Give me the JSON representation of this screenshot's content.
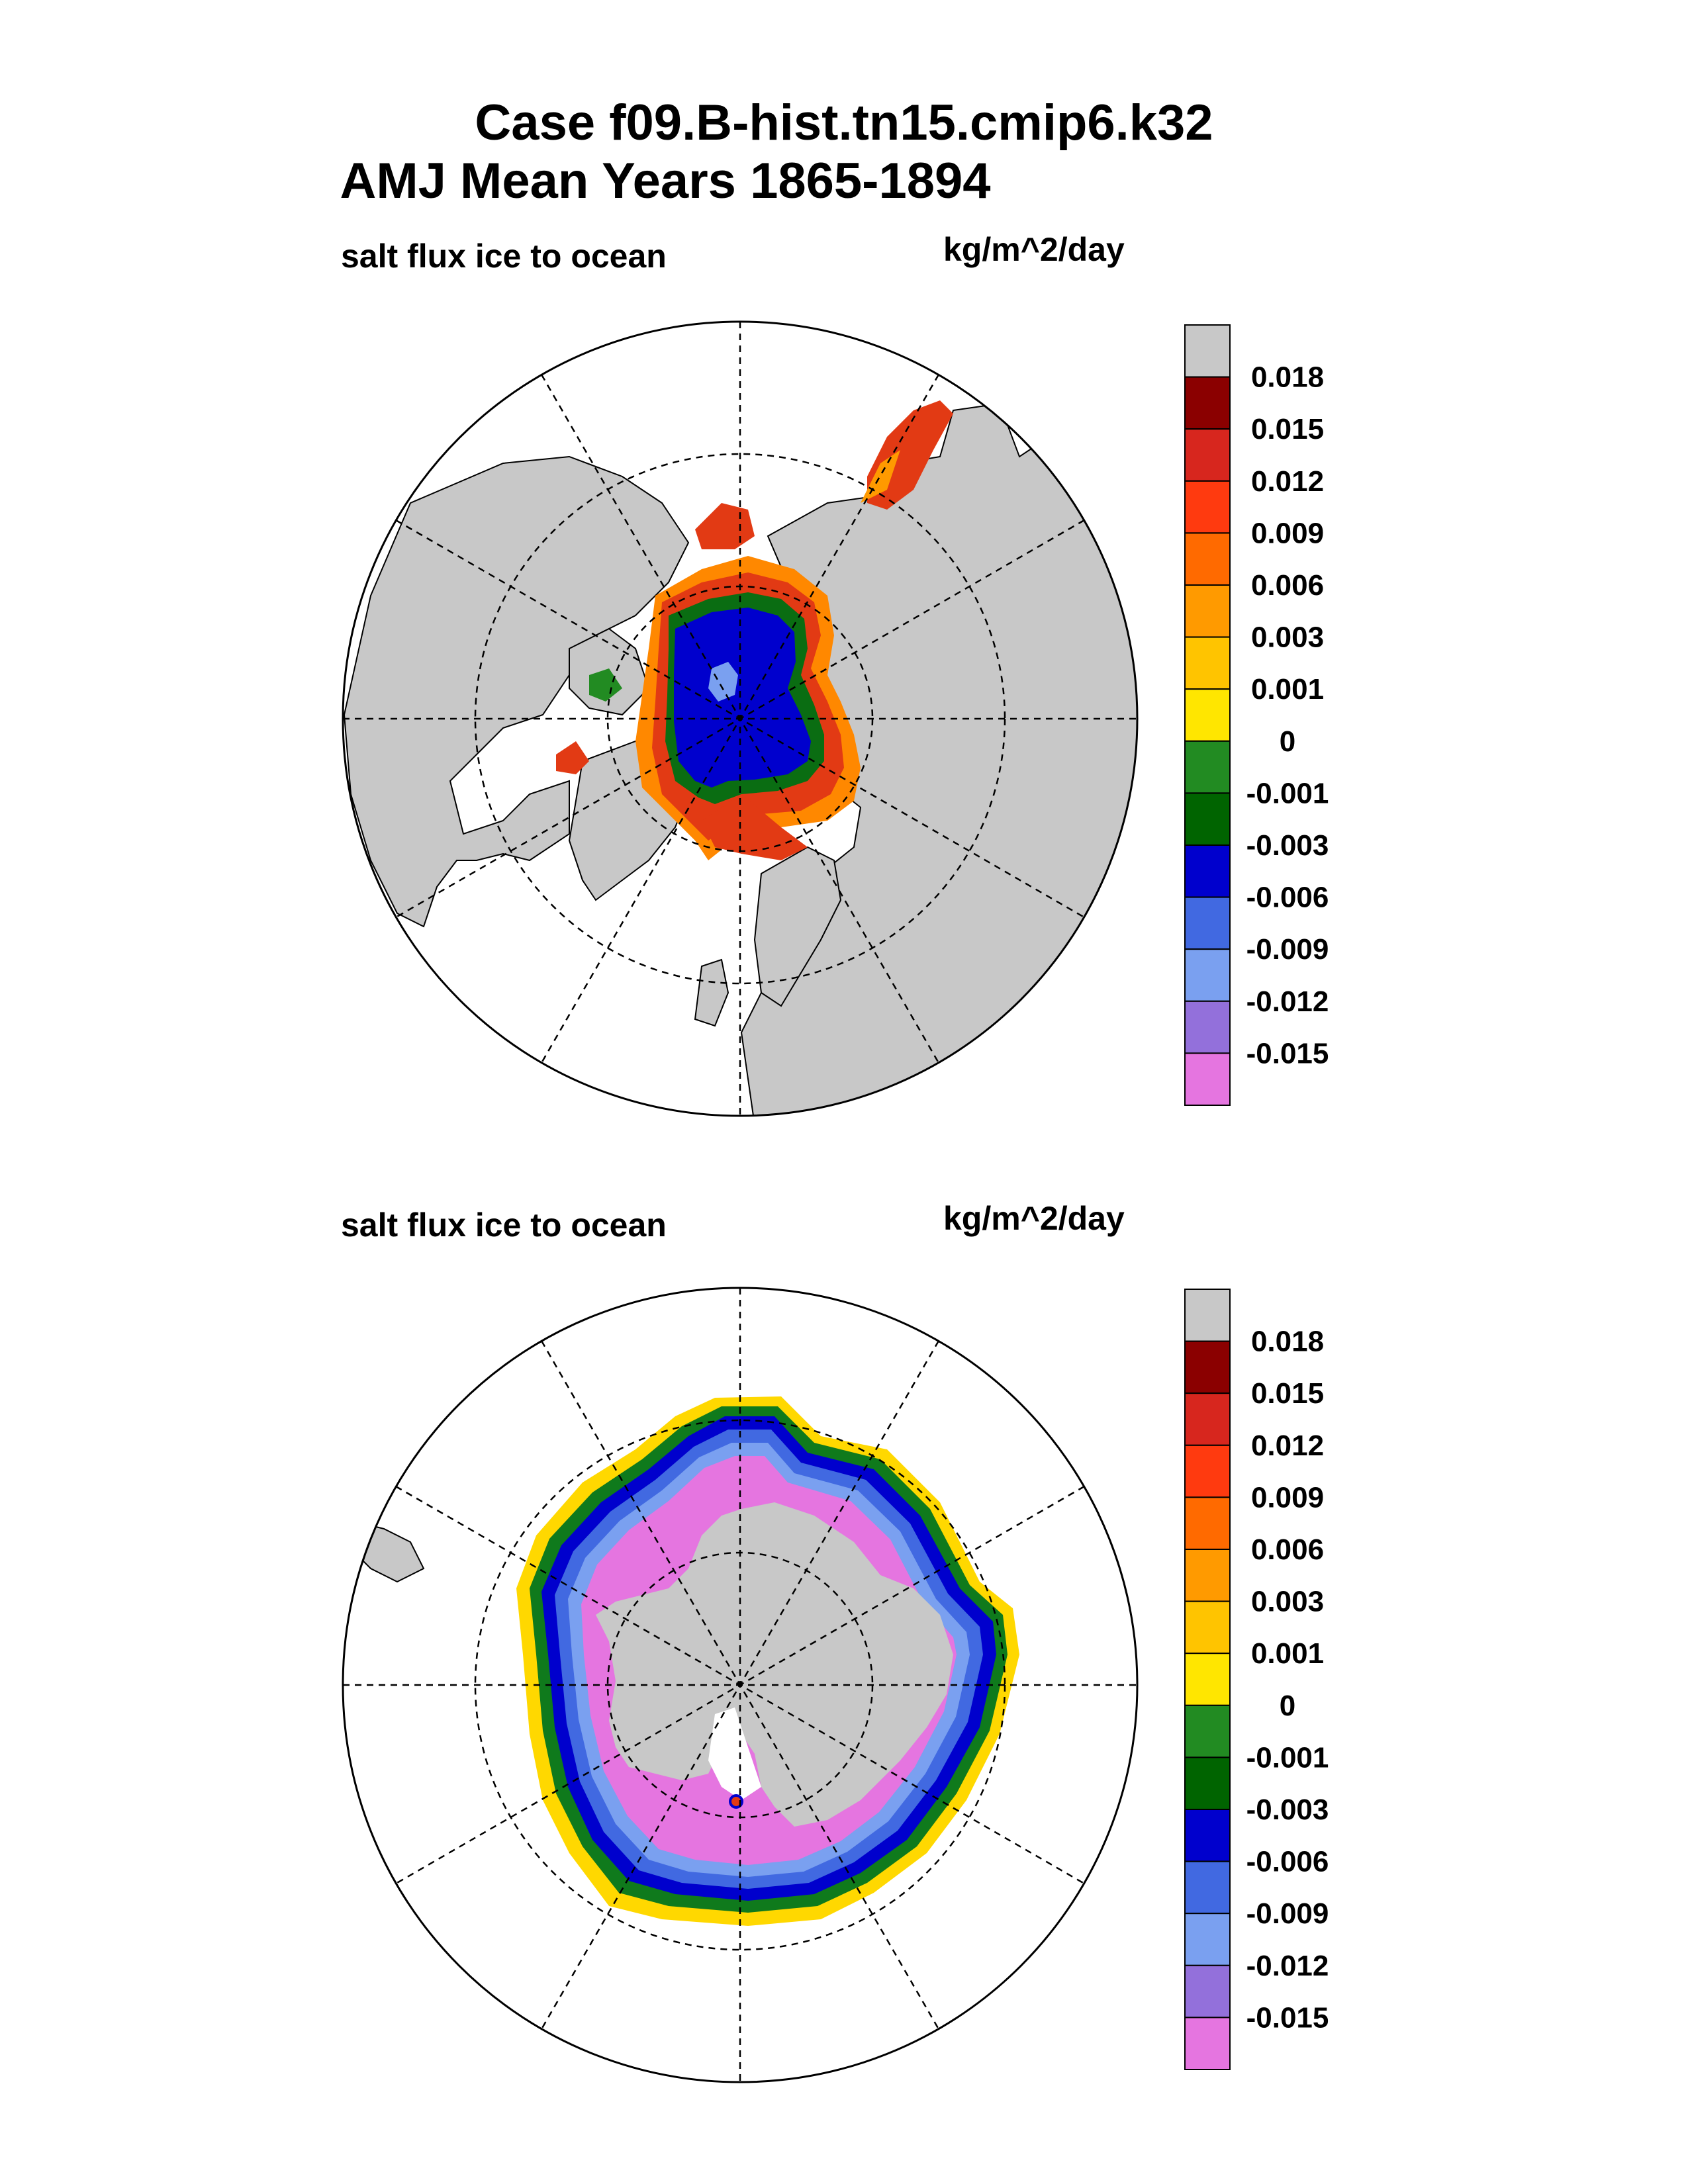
{
  "title_line1": "Case f09.B-hist.tn15.cmip6.k32",
  "title_line2": "AMJ Mean   Years 1865-1894",
  "panels": [
    {
      "variable": "salt flux ice to ocean",
      "units": "kg/m^2/day",
      "hemisphere": "north"
    },
    {
      "variable": "salt flux ice to ocean",
      "units": "kg/m^2/day",
      "hemisphere": "south"
    }
  ],
  "chart_data": [
    {
      "type": "heatmap",
      "projection": "north polar stereographic",
      "title": "salt flux ice to ocean",
      "units": "kg/m^2/day",
      "colorbar_labels": [
        "0.018",
        "0.015",
        "0.012",
        "0.009",
        "0.006",
        "0.003",
        "0.001",
        "0",
        "-0.001",
        "-0.003",
        "-0.006",
        "-0.009",
        "-0.012",
        "-0.015"
      ],
      "colorbar_colors": [
        "#c8c8c8",
        "#8b0000",
        "#d7261e",
        "#ff3a0f",
        "#ff6a00",
        "#ff9a00",
        "#ffc400",
        "#ffe600",
        "#228b22",
        "#006400",
        "#0000cd",
        "#4169e1",
        "#7aa0f0",
        "#9370db",
        "#e575e0"
      ],
      "levels": [
        0.018,
        0.015,
        0.012,
        0.009,
        0.006,
        0.003,
        0.001,
        0,
        -0.001,
        -0.003,
        -0.006,
        -0.009,
        -0.012,
        -0.015
      ]
    },
    {
      "type": "heatmap",
      "projection": "south polar stereographic",
      "title": "salt flux ice to ocean",
      "units": "kg/m^2/day",
      "colorbar_labels": [
        "0.018",
        "0.015",
        "0.012",
        "0.009",
        "0.006",
        "0.003",
        "0.001",
        "0",
        "-0.001",
        "-0.003",
        "-0.006",
        "-0.009",
        "-0.012",
        "-0.015"
      ],
      "colorbar_colors": [
        "#c8c8c8",
        "#8b0000",
        "#d7261e",
        "#ff3a0f",
        "#ff6a00",
        "#ff9a00",
        "#ffc400",
        "#ffe600",
        "#228b22",
        "#006400",
        "#0000cd",
        "#4169e1",
        "#7aa0f0",
        "#9370db",
        "#e575e0"
      ],
      "levels": [
        0.018,
        0.015,
        0.012,
        0.009,
        0.006,
        0.003,
        0.001,
        0,
        -0.001,
        -0.003,
        -0.006,
        -0.009,
        -0.012,
        -0.015
      ]
    }
  ]
}
